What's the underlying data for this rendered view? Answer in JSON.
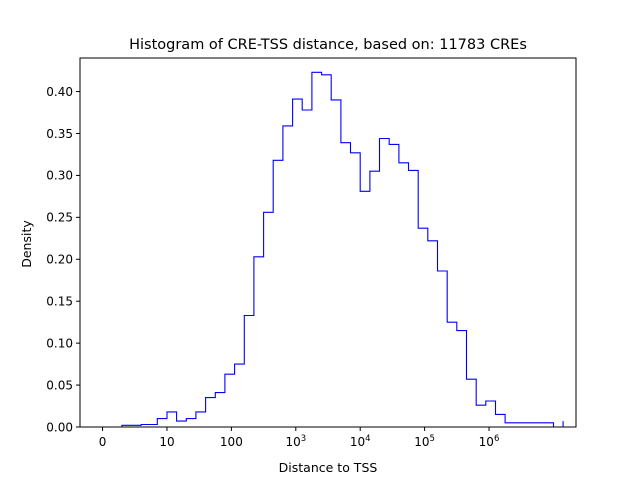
{
  "chart_data": {
    "type": "histogram",
    "title": "Histogram of CRE-TSS distance, based on: 11783 CREs",
    "xlabel": "Distance to TSS",
    "ylabel": "Density",
    "ylim": [
      0,
      0.44
    ],
    "yticks": [
      "0.00",
      "0.05",
      "0.10",
      "0.15",
      "0.20",
      "0.25",
      "0.30",
      "0.35",
      "0.40"
    ],
    "xscale": "symlog",
    "xticks": [
      {
        "value": 0,
        "base": "0",
        "exp": ""
      },
      {
        "value": 10,
        "base": "10",
        "exp": ""
      },
      {
        "value": 100,
        "base": "100",
        "exp": ""
      },
      {
        "value": 1000,
        "base": "10",
        "exp": "3"
      },
      {
        "value": 10000,
        "base": "10",
        "exp": "4"
      },
      {
        "value": 100000,
        "base": "10",
        "exp": "5"
      },
      {
        "value": 1000000,
        "base": "10",
        "exp": "6"
      }
    ],
    "series_color": "#0000ff",
    "grid": false,
    "step": {
      "x": [
        0.3,
        0.6,
        0.85,
        1.0,
        1.15,
        1.3,
        1.45,
        1.6,
        1.75,
        1.9,
        2.05,
        2.2,
        2.35,
        2.5,
        2.65,
        2.8,
        2.95,
        3.1,
        3.25,
        3.4,
        3.55,
        3.7,
        3.85,
        4.0,
        4.15,
        4.3,
        4.45,
        4.6,
        4.75,
        4.9,
        5.05,
        5.2,
        5.35,
        5.5,
        5.65,
        5.8,
        5.95,
        6.1,
        6.25,
        7.0,
        7.15
      ],
      "density": [
        0.002,
        0.003,
        0.01,
        0.018,
        0.007,
        0.01,
        0.018,
        0.035,
        0.041,
        0.063,
        0.075,
        0.133,
        0.203,
        0.256,
        0.318,
        0.359,
        0.391,
        0.378,
        0.423,
        0.42,
        0.39,
        0.339,
        0.327,
        0.281,
        0.305,
        0.344,
        0.337,
        0.315,
        0.306,
        0.237,
        0.222,
        0.186,
        0.125,
        0.115,
        0.057,
        0.026,
        0.031,
        0.015,
        0.005,
        0.0,
        0.007
      ]
    }
  }
}
